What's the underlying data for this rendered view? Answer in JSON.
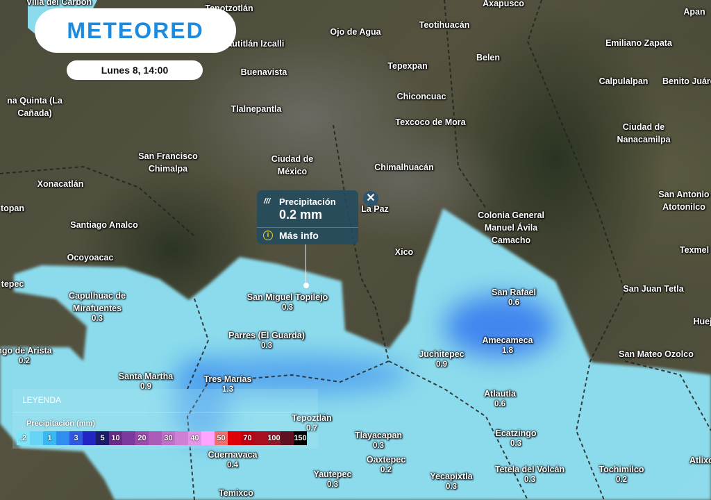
{
  "brand": {
    "logo": "METEORED"
  },
  "date_label": "Lunes 8, 14:00",
  "popup": {
    "icon": "rain-icon",
    "title": "Precipitación",
    "value": "0.2 mm",
    "more": "Más info"
  },
  "legend": {
    "title": "LEYENDA",
    "subtitle": "Precipitación (mm)",
    "scale": [
      {
        "label": ".2",
        "color": "#7fe4f8"
      },
      {
        "label": "",
        "color": "#66d4f6"
      },
      {
        "label": "1",
        "color": "#3ab8f2"
      },
      {
        "label": "",
        "color": "#2f8ef0"
      },
      {
        "label": "3",
        "color": "#3058e0"
      },
      {
        "label": "",
        "color": "#2424c4"
      },
      {
        "label": "5",
        "color": "#1c1a6a"
      },
      {
        "label": "10",
        "color": "#6a2a8a"
      },
      {
        "label": "",
        "color": "#7c3a9c"
      },
      {
        "label": "20",
        "color": "#9a4cac"
      },
      {
        "label": "",
        "color": "#aa5cb8"
      },
      {
        "label": "30",
        "color": "#c070c8"
      },
      {
        "label": "",
        "color": "#d080d4"
      },
      {
        "label": "40",
        "color": "#e496e6"
      },
      {
        "label": "",
        "color": "#ffa4ff"
      },
      {
        "label": "50",
        "color": "#f07070"
      },
      {
        "label": "",
        "color": "#e00008"
      },
      {
        "label": "70",
        "color": "#c00010"
      },
      {
        "label": "",
        "color": "#a81020"
      },
      {
        "label": "100",
        "color": "#901828"
      },
      {
        "label": "",
        "color": "#601020"
      },
      {
        "label": "150",
        "color": "#000000"
      }
    ]
  },
  "places": [
    {
      "name": "Villa del Carbón"
    },
    {
      "name": "Tepotzotlán"
    },
    {
      "name": "Axapusco"
    },
    {
      "name": "Apan"
    },
    {
      "name": "Ojo de Agua"
    },
    {
      "name": "Teotihuacán"
    },
    {
      "name": "Emiliano Zapata"
    },
    {
      "name": "Cuautitlán Izcalli"
    },
    {
      "name": "Belen"
    },
    {
      "name": "Buenavista"
    },
    {
      "name": "Tepexpan"
    },
    {
      "name": "Calpulalpan"
    },
    {
      "name": "Benito Juárez"
    },
    {
      "name": "Chiconcuac"
    },
    {
      "name": "na Quinta (La\nCañada)"
    },
    {
      "name": "Tlalnepantla"
    },
    {
      "name": "Texcoco de Mora"
    },
    {
      "name": "Ciudad de\nNanacamilpa"
    },
    {
      "name": "San Francisco\nChimalpa"
    },
    {
      "name": "Ciudad de\nMéxico"
    },
    {
      "name": "Chimalhuacán"
    },
    {
      "name": "Xonacatlán"
    },
    {
      "name": "San Antonio\nAtotonilco"
    },
    {
      "name": "topan"
    },
    {
      "name": "La Paz"
    },
    {
      "name": "Colonia General\nManuel Ávila\nCamacho"
    },
    {
      "name": "Santiago Analco"
    },
    {
      "name": "Texmel"
    },
    {
      "name": "Xico"
    },
    {
      "name": "Ocoyoacac"
    },
    {
      "name": "tepec"
    },
    {
      "name": "San Juan Tetla"
    },
    {
      "name": "Capulhuac de\nMirafuentes",
      "value": "0.3"
    },
    {
      "name": "San Miguel Topilejo",
      "value": "0.3"
    },
    {
      "name": "San Rafael",
      "value": "0.6"
    },
    {
      "name": "Huej"
    },
    {
      "name": "Parres (El Guarda)",
      "value": "0.3"
    },
    {
      "name": "Amecameca",
      "value": "1.8"
    },
    {
      "name": "ngo de Arista",
      "value": "0.2"
    },
    {
      "name": "San Mateo Ozolco"
    },
    {
      "name": "Juchitepec",
      "value": "0.9"
    },
    {
      "name": "Santa Martha",
      "value": "0.9"
    },
    {
      "name": "Tres Marías",
      "value": "1.3"
    },
    {
      "name": "Atlautla",
      "value": "0.6"
    },
    {
      "name": "Tepoztlán",
      "value": "0.7"
    },
    {
      "name": "Tlayacapan",
      "value": "0.3"
    },
    {
      "name": "Ecatzingo",
      "value": "0.3"
    },
    {
      "name": "Cuernavaca",
      "value": "0.4"
    },
    {
      "name": "Oaxtepec",
      "value": "0.2"
    },
    {
      "name": "Atlixc"
    },
    {
      "name": "Yautepec",
      "value": "0.3"
    },
    {
      "name": "Yecapixtla",
      "value": "0.3"
    },
    {
      "name": "Tetela del Volcán",
      "value": "0.3"
    },
    {
      "name": "Tochimilco",
      "value": "0.2"
    },
    {
      "name": "Temixco"
    }
  ]
}
